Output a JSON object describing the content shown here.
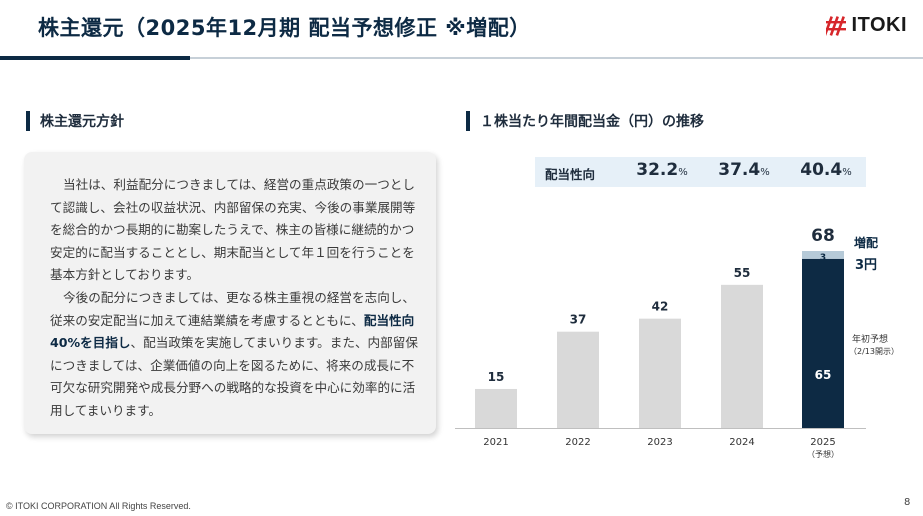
{
  "header": {
    "title": "株主還元（2025年12月期 配当予想修正 ※増配）",
    "logo_text": "ITOKI"
  },
  "policy": {
    "heading": "株主還元方針",
    "para1": "当社は、利益配分につきましては、経営の重点政策の一つとして認識し、会社の収益状況、内部留保の充実、今後の事業展開等を総合的かつ長期的に勘案したうえで、株主の皆様に継続的かつ安定的に配当することとし、期末配当として年１回を行うことを基本方針としております。",
    "para2_a": "今後の配分につきましては、更なる株主重視の経営を志向し、従来の安定配当に加えて連結業績を考慮するとともに、",
    "para2_bold": "配当性向40%を目指し",
    "para2_b": "、配当政策を実施してまいります。また、内部留保につきましては、企業価値の向上を図るために、将来の成長に不可欠な研究開発や成長分野への戦略的な投資を中心に効率的に活用してまいります。"
  },
  "chart_section": {
    "heading": "１株当たり年間配当金（円）の推移",
    "payout_label": "配当性向",
    "payout_ratios": [
      {
        "value": "32.2",
        "unit": "%"
      },
      {
        "value": "37.4",
        "unit": "%"
      },
      {
        "value": "40.4",
        "unit": "%"
      }
    ]
  },
  "chart_data": {
    "type": "bar",
    "categories": [
      "2021",
      "2022",
      "2023",
      "2024",
      "2025"
    ],
    "category_sublabels": [
      "",
      "",
      "",
      "",
      "（予想）"
    ],
    "values": [
      15,
      37,
      42,
      55,
      68
    ],
    "stack_2025": {
      "base": 65,
      "base_label": "年初予想",
      "base_sublabel": "（2/13開示）",
      "increase": 3,
      "increase_label": "増配",
      "increase_value_label": "3円"
    },
    "ylim": [
      0,
      70
    ],
    "colors": {
      "past": "#d9d9d9",
      "base_2025": "#0d2a44",
      "increase_2025": "#b6cad8"
    }
  },
  "footer": {
    "copyright": "© ITOKI CORPORATION All Rights Reserved.",
    "page": "8"
  }
}
